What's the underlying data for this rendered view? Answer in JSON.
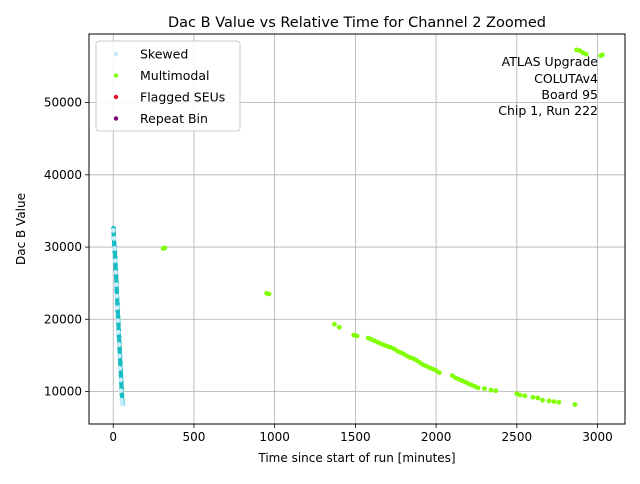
{
  "chart_data": {
    "type": "scatter",
    "title": "Dac B Value vs Relative Time for Channel 2 Zoomed",
    "xlabel": "Time since start of run [minutes]",
    "ylabel": "Dac B Value",
    "xlim": [
      -150,
      3170
    ],
    "ylim": [
      5500,
      59500
    ],
    "xticks": [
      0,
      500,
      1000,
      1500,
      2000,
      2500,
      3000
    ],
    "yticks": [
      10000,
      20000,
      30000,
      40000,
      50000
    ],
    "grid": true,
    "legend_position": "top-left",
    "annotation": [
      "ATLAS Upgrade",
      "COLUTAv4",
      "Board 95",
      "Chip 1, Run 222"
    ],
    "colors": {
      "skewed": "#c8ecfa",
      "multimodal": "#80ff00",
      "flagged": "#e8102a",
      "repeat": "#7a007a",
      "cyan_points": "#1abcc4"
    },
    "series": [
      {
        "name": "Skewed",
        "color": "#c8ecfa",
        "points": [
          [
            0,
            32300
          ],
          [
            5,
            31200
          ],
          [
            8,
            29800
          ],
          [
            12,
            28100
          ],
          [
            15,
            26500
          ],
          [
            18,
            24800
          ],
          [
            22,
            23200
          ],
          [
            25,
            21600
          ],
          [
            28,
            19800
          ],
          [
            32,
            18200
          ],
          [
            35,
            16500
          ],
          [
            38,
            14900
          ],
          [
            42,
            13200
          ],
          [
            45,
            11600
          ],
          [
            48,
            10100
          ],
          [
            52,
            8800
          ],
          [
            55,
            8300
          ]
        ]
      },
      {
        "name": "Multimodal",
        "color": "#80ff00",
        "points": [
          [
            310,
            29800
          ],
          [
            320,
            29900
          ],
          [
            950,
            23600
          ],
          [
            965,
            23500
          ],
          [
            1370,
            19300
          ],
          [
            1400,
            18900
          ],
          [
            1490,
            17800
          ],
          [
            1510,
            17700
          ],
          [
            1580,
            17400
          ],
          [
            1600,
            17200
          ],
          [
            1620,
            17000
          ],
          [
            1640,
            16800
          ],
          [
            1660,
            16600
          ],
          [
            1680,
            16400
          ],
          [
            1700,
            16250
          ],
          [
            1720,
            16100
          ],
          [
            1740,
            15900
          ],
          [
            1760,
            15600
          ],
          [
            1780,
            15400
          ],
          [
            1800,
            15200
          ],
          [
            1820,
            14900
          ],
          [
            1840,
            14700
          ],
          [
            1860,
            14550
          ],
          [
            1880,
            14300
          ],
          [
            1900,
            14000
          ],
          [
            1920,
            13700
          ],
          [
            1940,
            13500
          ],
          [
            1960,
            13300
          ],
          [
            1980,
            13100
          ],
          [
            2000,
            12900
          ],
          [
            2020,
            12600
          ],
          [
            2100,
            12200
          ],
          [
            2120,
            11900
          ],
          [
            2140,
            11700
          ],
          [
            2160,
            11500
          ],
          [
            2180,
            11300
          ],
          [
            2200,
            11100
          ],
          [
            2220,
            10900
          ],
          [
            2240,
            10700
          ],
          [
            2260,
            10500
          ],
          [
            2300,
            10400
          ],
          [
            2340,
            10200
          ],
          [
            2370,
            10100
          ],
          [
            2500,
            9700
          ],
          [
            2520,
            9500
          ],
          [
            2550,
            9400
          ],
          [
            2600,
            9200
          ],
          [
            2630,
            9100
          ],
          [
            2660,
            8800
          ],
          [
            2700,
            8700
          ],
          [
            2730,
            8600
          ],
          [
            2760,
            8500
          ],
          [
            2860,
            8200
          ],
          [
            2870,
            57300
          ],
          [
            2890,
            57200
          ],
          [
            2910,
            56900
          ],
          [
            2930,
            56700
          ],
          [
            3020,
            56500
          ],
          [
            3030,
            56600
          ]
        ]
      },
      {
        "name": "Flagged SEUs",
        "color": "#e8102a",
        "points": []
      },
      {
        "name": "Repeat Bin",
        "color": "#7a007a",
        "points": []
      }
    ],
    "dense_cyan": {
      "color": "#1abcc4",
      "points": [
        [
          2,
          32600
        ],
        [
          3,
          32000
        ],
        [
          4,
          31200
        ],
        [
          6,
          30500
        ],
        [
          8,
          30000
        ],
        [
          10,
          29300
        ],
        [
          12,
          28600
        ],
        [
          14,
          27600
        ],
        [
          16,
          26800
        ],
        [
          18,
          26000
        ],
        [
          20,
          25000
        ],
        [
          22,
          24000
        ],
        [
          24,
          23100
        ],
        [
          26,
          22200
        ],
        [
          28,
          21200
        ],
        [
          30,
          20300
        ],
        [
          32,
          19400
        ],
        [
          34,
          18500
        ],
        [
          36,
          17600
        ],
        [
          38,
          16700
        ],
        [
          40,
          15800
        ],
        [
          42,
          14900
        ],
        [
          44,
          14000
        ],
        [
          46,
          13100
        ],
        [
          48,
          12200
        ],
        [
          50,
          11300
        ],
        [
          52,
          10400
        ],
        [
          54,
          9500
        ],
        [
          56,
          8800
        ],
        [
          58,
          8300
        ]
      ]
    }
  }
}
